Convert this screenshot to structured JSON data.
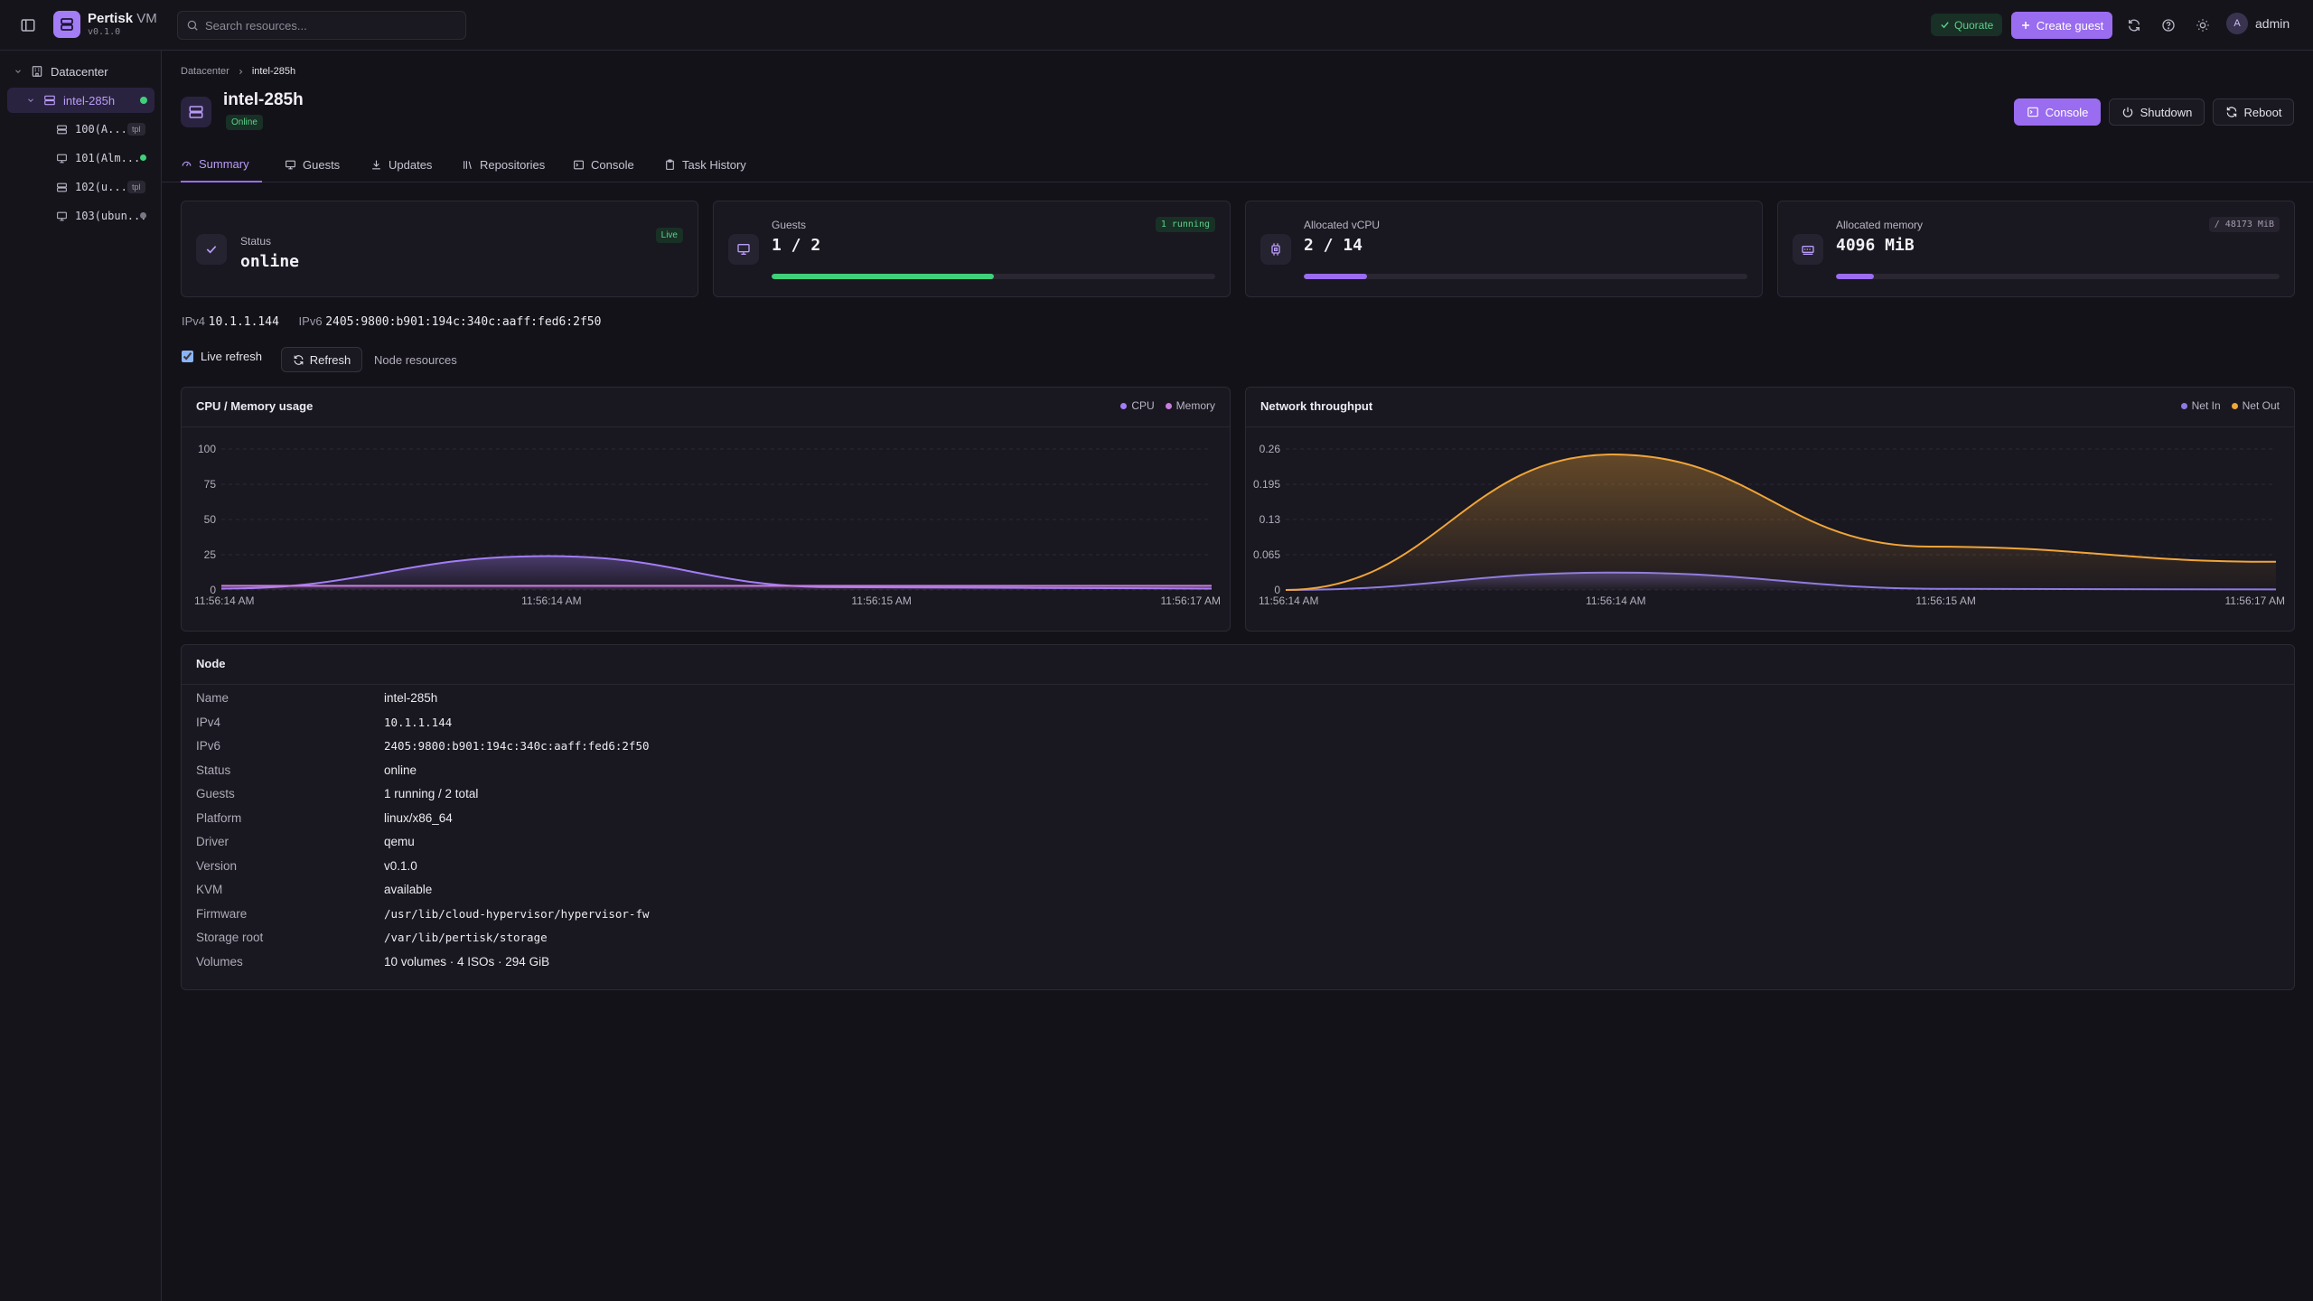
{
  "app": {
    "name": "Pertisk",
    "suffix": "VM",
    "version": "v0.1.0"
  },
  "search": {
    "placeholder": "Search resources..."
  },
  "topbar": {
    "quorate": "Quorate",
    "create_guest": "Create guest",
    "user": "admin",
    "avatar_initial": "A"
  },
  "sidebar": {
    "datacenter": "Datacenter",
    "node": "intel-285h",
    "guests": [
      {
        "label": "100(A...",
        "tag": "tpl",
        "icon": "server-icon",
        "status": ""
      },
      {
        "label": "101(Alm...",
        "tag": "",
        "icon": "monitor-icon",
        "status": "#3fd07a"
      },
      {
        "label": "102(u...",
        "tag": "tpl",
        "icon": "server-icon",
        "status": ""
      },
      {
        "label": "103(ubun...",
        "tag": "",
        "icon": "monitor-icon",
        "status": "#7a7785"
      }
    ]
  },
  "breadcrumb": {
    "root": "Datacenter",
    "current": "intel-285h"
  },
  "node": {
    "title": "intel-285h",
    "status_badge": "Online"
  },
  "actions": {
    "console": "Console",
    "shutdown": "Shutdown",
    "reboot": "Reboot"
  },
  "tabs": [
    "Summary",
    "Guests",
    "Updates",
    "Repositories",
    "Console",
    "Task History"
  ],
  "cards": {
    "status": {
      "label": "Status",
      "value": "online",
      "pill": "Live"
    },
    "guests": {
      "label": "Guests",
      "value": "1 / 2",
      "pill": "1 running",
      "progress": 0.5
    },
    "vcpu": {
      "label": "Allocated vCPU",
      "value": "2 / 14",
      "progress": 0.143
    },
    "memory": {
      "label": "Allocated memory",
      "value": "4096 MiB",
      "pill": "/ 48173 MiB",
      "progress": 0.085
    }
  },
  "addresses": {
    "ipv4_label": "IPv4",
    "ipv4": "10.1.1.144",
    "ipv6_label": "IPv6",
    "ipv6": "2405:9800:b901:194c:340c:aaff:fed6:2f50"
  },
  "controls": {
    "live_refresh": "Live refresh",
    "refresh": "Refresh",
    "node_resources": "Node resources"
  },
  "colors": {
    "accent": "#9a6cf0",
    "cpu": "#a37df5",
    "memory": "#c77dde",
    "net_in": "#8c7ae6",
    "net_out": "#f0a53a",
    "online": "#3fd07a"
  },
  "chart_data": [
    {
      "type": "area",
      "title": "CPU / Memory usage",
      "x": [
        "11:56:14 AM",
        "11:56:14 AM",
        "11:56:15 AM",
        "11:56:17 AM"
      ],
      "ylim": [
        0,
        100
      ],
      "yticks": [
        "100",
        "75",
        "50",
        "25",
        "0"
      ],
      "grid": true,
      "legend": "top-right",
      "series": [
        {
          "name": "CPU",
          "values": [
            [
              0,
              1
            ],
            [
              0.33,
              24
            ],
            [
              0.62,
              2
            ],
            [
              1,
              1
            ]
          ]
        },
        {
          "name": "Memory",
          "values": [
            [
              0,
              3
            ],
            [
              0.33,
              3
            ],
            [
              0.62,
              3
            ],
            [
              1,
              3
            ]
          ]
        }
      ]
    },
    {
      "type": "area",
      "title": "Network throughput",
      "x": [
        "11:56:14 AM",
        "11:56:14 AM",
        "11:56:15 AM",
        "11:56:17 AM"
      ],
      "ylim": [
        0,
        0.26
      ],
      "yticks": [
        "0.26",
        "0.195",
        "0.13",
        "0.065",
        "0"
      ],
      "grid": true,
      "legend": "top-right",
      "series": [
        {
          "name": "Net In",
          "values": [
            [
              0,
              0
            ],
            [
              0.33,
              0.032
            ],
            [
              0.67,
              0.002
            ],
            [
              1,
              0.001
            ]
          ]
        },
        {
          "name": "Net Out",
          "values": [
            [
              0,
              0
            ],
            [
              0.33,
              0.25
            ],
            [
              0.65,
              0.08
            ],
            [
              1,
              0.052
            ]
          ]
        }
      ]
    }
  ],
  "node_table": {
    "title": "Node",
    "rows": [
      {
        "k": "Name",
        "v": "intel-285h",
        "mono": false
      },
      {
        "k": "IPv4",
        "v": "10.1.1.144",
        "mono": true
      },
      {
        "k": "IPv6",
        "v": "2405:9800:b901:194c:340c:aaff:fed6:2f50",
        "mono": true
      },
      {
        "k": "Status",
        "v": "online",
        "mono": false
      },
      {
        "k": "Guests",
        "v": "1 running / 2 total",
        "mono": false
      },
      {
        "k": "Platform",
        "v": "linux/x86_64",
        "mono": false
      },
      {
        "k": "Driver",
        "v": "qemu",
        "mono": false
      },
      {
        "k": "Version",
        "v": "v0.1.0",
        "mono": false
      },
      {
        "k": "KVM",
        "v": "available",
        "mono": false
      },
      {
        "k": "Firmware",
        "v": "/usr/lib/cloud-hypervisor/hypervisor-fw",
        "mono": true
      },
      {
        "k": "Storage root",
        "v": "/var/lib/pertisk/storage",
        "mono": true
      },
      {
        "k": "Volumes",
        "v": "10 volumes · 4 ISOs · 294 GiB",
        "mono": false
      }
    ]
  }
}
